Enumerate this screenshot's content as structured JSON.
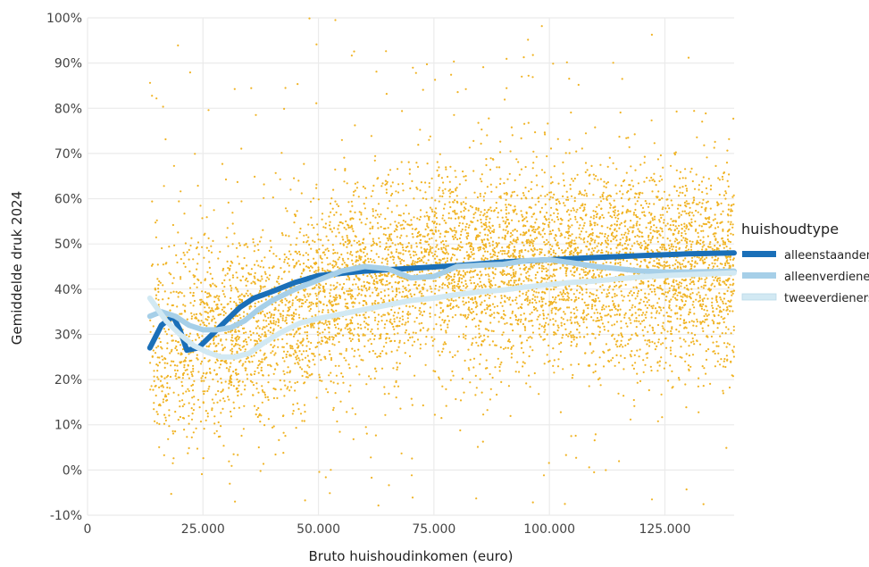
{
  "chart_data": {
    "type": "scatter",
    "title": "",
    "xlabel": "Bruto huishoudinkomen (euro)",
    "ylabel": "Gemiddelde druk 2024",
    "xlim": [
      0,
      140000
    ],
    "ylim": [
      -10,
      100
    ],
    "x_ticks": [
      {
        "value": 0,
        "label": "0"
      },
      {
        "value": 25000,
        "label": "25.000"
      },
      {
        "value": 50000,
        "label": "50.000"
      },
      {
        "value": 75000,
        "label": "75.000"
      },
      {
        "value": 100000,
        "label": "100.000"
      },
      {
        "value": 125000,
        "label": "125.000"
      }
    ],
    "y_ticks": [
      {
        "value": -10,
        "label": "-10%"
      },
      {
        "value": 0,
        "label": "0%"
      },
      {
        "value": 10,
        "label": "10%"
      },
      {
        "value": 20,
        "label": "20%"
      },
      {
        "value": 30,
        "label": "30%"
      },
      {
        "value": 40,
        "label": "40%"
      },
      {
        "value": 50,
        "label": "50%"
      },
      {
        "value": 60,
        "label": "60%"
      },
      {
        "value": 70,
        "label": "70%"
      },
      {
        "value": 80,
        "label": "80%"
      },
      {
        "value": 90,
        "label": "90%"
      },
      {
        "value": 100,
        "label": "100%"
      }
    ],
    "grid": true,
    "legend": {
      "title": "huishoudtype",
      "position": "right"
    },
    "scatter": {
      "color": "#f0b323",
      "x_range": [
        13500,
        140000
      ],
      "description_points_estimated": true
    },
    "series": [
      {
        "name": "alleenstaanden",
        "color": "#1a6fb8",
        "x": [
          13500,
          16000,
          18500,
          20000,
          21500,
          24000,
          27000,
          30000,
          33000,
          36000,
          40000,
          45000,
          50000,
          60000,
          70000,
          80000,
          90000,
          100000,
          110000,
          120000,
          130000,
          140000
        ],
        "y": [
          27,
          32,
          34,
          31,
          26.5,
          27,
          30,
          33,
          36,
          38,
          39.5,
          41.5,
          43,
          44,
          44.6,
          45.2,
          46,
          46.5,
          47,
          47.4,
          47.8,
          48
        ]
      },
      {
        "name": "alleenverdieners",
        "color": "#a6cfe8",
        "x": [
          13500,
          16000,
          19000,
          22000,
          25000,
          28000,
          31000,
          34000,
          37000,
          40000,
          45000,
          50000,
          55000,
          60000,
          65000,
          70000,
          75000,
          80000,
          85000,
          90000,
          95000,
          100000,
          105000,
          110000,
          115000,
          120000,
          125000,
          130000,
          135000,
          140000
        ],
        "y": [
          34,
          35,
          34,
          32,
          31,
          31,
          31.5,
          33,
          35.5,
          37.5,
          40,
          42,
          44,
          45,
          44.5,
          42.5,
          42.8,
          45,
          45.3,
          45.5,
          46.3,
          46.5,
          45.8,
          45,
          44.5,
          44,
          43.8,
          43.8,
          43.9,
          44
        ]
      },
      {
        "name": "tweeverdieners",
        "color": "#d2e9f3",
        "x": [
          13500,
          17000,
          20000,
          23000,
          26000,
          29000,
          32000,
          35000,
          38000,
          42000,
          46000,
          50000,
          55000,
          60000,
          65000,
          70000,
          75000,
          80000,
          85000,
          90000,
          95000,
          100000,
          105000,
          110000,
          115000,
          120000,
          125000,
          130000,
          135000,
          140000
        ],
        "y": [
          38,
          33,
          30,
          27.5,
          26,
          25,
          25,
          25.8,
          28,
          30.5,
          32.5,
          33.5,
          34.5,
          35.5,
          36.5,
          37.5,
          38,
          38.8,
          39.4,
          39.8,
          40.5,
          41,
          41.5,
          41.8,
          42.3,
          42.7,
          43,
          43.2,
          43.4,
          43.6
        ]
      }
    ]
  }
}
